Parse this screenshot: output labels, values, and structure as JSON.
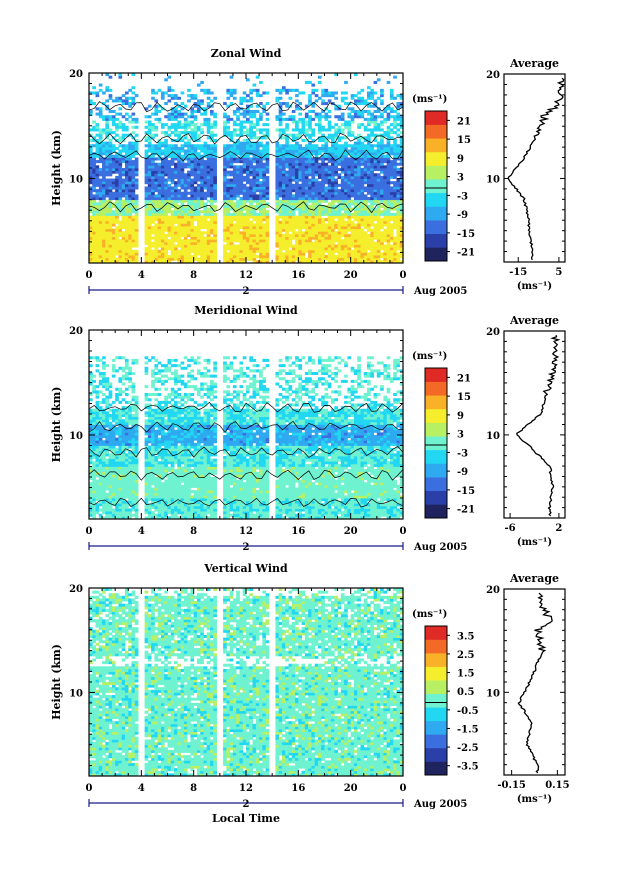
{
  "colors": {
    "colormap": [
      "#20245e",
      "#2a3fa8",
      "#3b6fe0",
      "#2fa9f0",
      "#22d7f2",
      "#6ff2d0",
      "#b8f064",
      "#f4ee2c",
      "#f9b227",
      "#f26a25",
      "#df2a25"
    ],
    "contour": "#000000",
    "axis": "#000000",
    "date_axis": "#1a1a8c"
  },
  "chart_data": [
    {
      "type": "heatmap",
      "title": "Zonal Wind",
      "xlabel": "",
      "ylabel": "Height (km)",
      "xlim": [
        0,
        24
      ],
      "ylim": [
        2,
        20
      ],
      "xticks": [
        "0",
        "4",
        "8",
        "12",
        "16",
        "20",
        "0"
      ],
      "yticks": [
        "10",
        "20"
      ],
      "date_marker": "2",
      "date_label": "Aug 2005",
      "colorbar": {
        "unit": "(ms⁻¹)",
        "ticks": [
          "21",
          "15",
          "9",
          "3",
          "-3",
          "-9",
          "-15",
          "-21"
        ],
        "range": [
          -24,
          24
        ]
      },
      "gaps_local_time": [
        4,
        10,
        14
      ],
      "profile": [
        {
          "height_km": 3,
          "value": -8
        },
        {
          "height_km": 6,
          "value": -10
        },
        {
          "height_km": 8,
          "value": -12
        },
        {
          "height_km": 10,
          "value": -20
        },
        {
          "height_km": 12,
          "value": -12
        },
        {
          "height_km": 14,
          "value": -6
        },
        {
          "height_km": 16,
          "value": -2
        },
        {
          "height_km": 17,
          "value": 4
        },
        {
          "height_km": 18,
          "value": 6
        }
      ]
    },
    {
      "type": "heatmap",
      "title": "Meridional Wind",
      "xlabel": "",
      "ylabel": "Height (km)",
      "xlim": [
        0,
        24
      ],
      "ylim": [
        2,
        20
      ],
      "xticks": [
        "0",
        "4",
        "8",
        "12",
        "16",
        "20",
        "0"
      ],
      "yticks": [
        "10",
        "20"
      ],
      "date_marker": "2",
      "date_label": "Aug 2005",
      "colorbar": {
        "unit": "(ms⁻¹)",
        "ticks": [
          "21",
          "15",
          "9",
          "3",
          "-3",
          "-9",
          "-15",
          "-21"
        ],
        "range": [
          -24,
          24
        ]
      },
      "gaps_local_time": [
        4,
        10,
        14
      ],
      "profile": [
        {
          "height_km": 3,
          "value": 0.5
        },
        {
          "height_km": 5,
          "value": 1
        },
        {
          "height_km": 7,
          "value": 0.5
        },
        {
          "height_km": 9,
          "value": -3
        },
        {
          "height_km": 10,
          "value": -5
        },
        {
          "height_km": 12,
          "value": -1
        },
        {
          "height_km": 14,
          "value": 0
        },
        {
          "height_km": 16,
          "value": 1
        },
        {
          "height_km": 18,
          "value": 1.5
        }
      ]
    },
    {
      "type": "heatmap",
      "title": "Vertical Wind",
      "xlabel": "Local Time",
      "ylabel": "Height (km)",
      "xlim": [
        0,
        24
      ],
      "ylim": [
        2,
        20
      ],
      "xticks": [
        "0",
        "4",
        "8",
        "12",
        "16",
        "20",
        "0"
      ],
      "yticks": [
        "10",
        "20"
      ],
      "date_marker": "2",
      "date_label": "Aug 2005",
      "colorbar": {
        "unit": "(ms⁻¹)",
        "ticks": [
          "3.5",
          "2.5",
          "1.5",
          "0.5",
          "-0.5",
          "-1.5",
          "-2.5",
          "-3.5"
        ],
        "range": [
          -4,
          4
        ]
      },
      "gaps_local_time": [
        4,
        10,
        14
      ],
      "profile": [
        {
          "height_km": 3,
          "value": 0.02
        },
        {
          "height_km": 5,
          "value": -0.05
        },
        {
          "height_km": 7,
          "value": -0.02
        },
        {
          "height_km": 9,
          "value": -0.1
        },
        {
          "height_km": 12,
          "value": 0
        },
        {
          "height_km": 14,
          "value": 0.05
        },
        {
          "height_km": 16,
          "value": 0.02
        },
        {
          "height_km": 17,
          "value": 0.1
        },
        {
          "height_km": 19,
          "value": 0.03
        }
      ]
    }
  ],
  "profiles": [
    {
      "title": "Average",
      "xlabel": "(ms⁻¹)",
      "xticks": [
        "-15",
        "5"
      ],
      "xlim": [
        -22,
        8
      ],
      "yticks": [
        "10",
        "20"
      ],
      "ylim": [
        2,
        20
      ]
    },
    {
      "title": "Average",
      "xlabel": "(ms⁻¹)",
      "xticks": [
        "-6",
        "2"
      ],
      "xlim": [
        -7,
        3
      ],
      "yticks": [
        "10",
        "20"
      ],
      "ylim": [
        2,
        20
      ]
    },
    {
      "title": "Average",
      "xlabel": "(ms⁻¹)",
      "xticks": [
        "-0.15",
        "0.15"
      ],
      "xlim": [
        -0.2,
        0.2
      ],
      "yticks": [
        "10",
        "20"
      ],
      "ylim": [
        2,
        20
      ]
    }
  ]
}
